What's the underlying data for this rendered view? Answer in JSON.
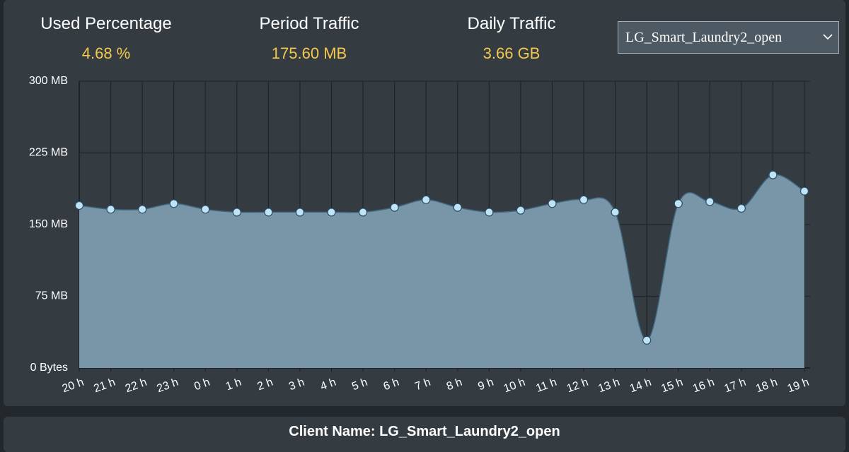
{
  "stats": [
    {
      "label": "Used Percentage",
      "value": "4.68 %"
    },
    {
      "label": "Period Traffic",
      "value": "175.60 MB"
    },
    {
      "label": "Daily Traffic",
      "value": "3.66 GB"
    }
  ],
  "dropdown": {
    "selected": "LG_Smart_Laundry2_open"
  },
  "chart_data": {
    "type": "area",
    "categories": [
      "20 h",
      "21 h",
      "22 h",
      "23 h",
      "0 h",
      "1 h",
      "2 h",
      "3 h",
      "4 h",
      "5 h",
      "6 h",
      "7 h",
      "8 h",
      "9 h",
      "10 h",
      "11 h",
      "12 h",
      "13 h",
      "14 h",
      "15 h",
      "16 h",
      "17 h",
      "18 h",
      "19 h"
    ],
    "series": [
      {
        "color": "#7d9bae",
        "values": [
          170,
          166,
          166,
          172,
          166,
          163,
          163,
          163,
          163,
          163,
          168,
          176,
          168,
          163,
          165,
          172,
          176,
          163,
          29,
          172,
          174,
          167,
          202,
          185
        ]
      }
    ],
    "ylim": [
      0,
      300
    ],
    "yticks": [
      {
        "value": 0,
        "label": "0 Bytes"
      },
      {
        "value": 75,
        "label": "75 MB"
      },
      {
        "value": 150,
        "label": "150 MB"
      },
      {
        "value": 225,
        "label": "225 MB"
      },
      {
        "value": 300,
        "label": "300 MB"
      }
    ],
    "grid": true
  },
  "footer": {
    "text": "Client Name: LG_Smart_Laundry2_open"
  }
}
